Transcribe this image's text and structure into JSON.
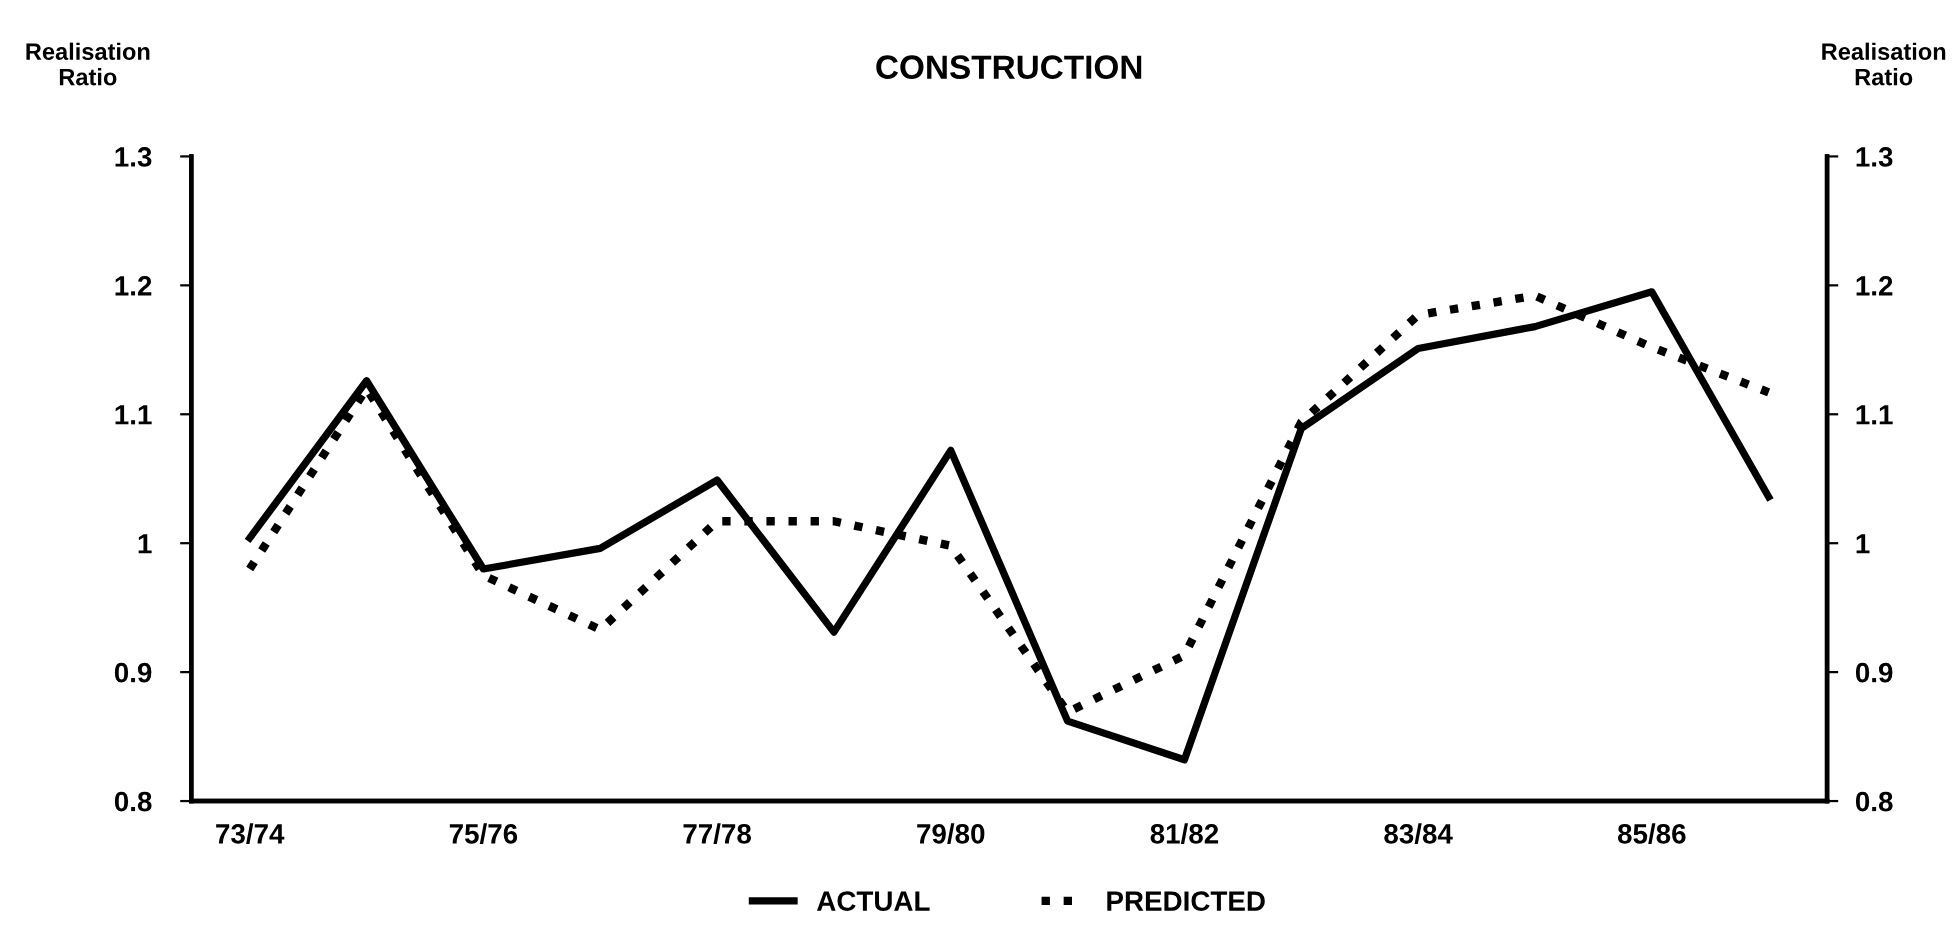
{
  "chart_data": {
    "type": "line",
    "title": "CONSTRUCTION",
    "ylabel": "Realisation\nRatio",
    "y2label": "Realisation\nRatio",
    "categories": [
      "73/74",
      null,
      "75/76",
      null,
      "77/78",
      null,
      "79/80",
      null,
      "81/82",
      null,
      "83/84",
      null,
      "85/86",
      null
    ],
    "series": [
      {
        "name": "ACTUAL",
        "color": "#000000",
        "line_style": "solid",
        "values": [
          1.004,
          1.126,
          0.98,
          0.996,
          1.049,
          0.931,
          1.072,
          0.862,
          0.832,
          1.089,
          1.151,
          1.168,
          1.195,
          1.036
        ]
      },
      {
        "name": "PREDICTED",
        "color": "#000000",
        "line_style": "dotted",
        "values": [
          0.98,
          1.12,
          0.975,
          0.933,
          1.017,
          1.017,
          0.998,
          0.869,
          0.913,
          1.094,
          1.177,
          1.192,
          1.152,
          1.117
        ]
      }
    ],
    "ylim": [
      0.8,
      1.3
    ],
    "yticks": [
      0.8,
      0.9,
      1,
      1.1,
      1.2,
      1.3
    ],
    "y2lim": [
      0.8,
      1.3
    ],
    "y2ticks": [
      0.8,
      0.9,
      1,
      1.1,
      1.2,
      1.3
    ],
    "grid": false,
    "legend": "bottom",
    "marker": "none"
  }
}
